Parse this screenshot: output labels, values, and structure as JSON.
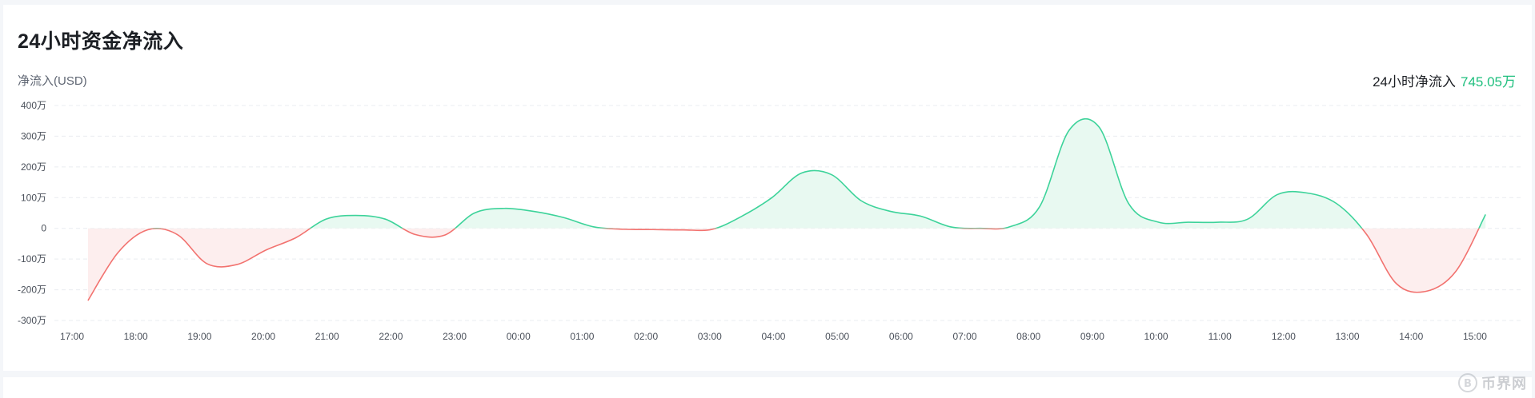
{
  "title": "24小时资金净流入",
  "unit_label": "净流入(USD)",
  "summary": {
    "label": "24小时净流入",
    "value": "745.05万"
  },
  "colors": {
    "positive_line": "#3dd39a",
    "positive_fill": "#e8f9f1",
    "negative_line": "#f2726f",
    "negative_fill": "#fdeeee",
    "summary_value": "#1fbf7e"
  },
  "chart_data": {
    "type": "area",
    "title": "24小时资金净流入",
    "ylabel": "净流入(USD)",
    "xlabel": "",
    "ylim": [
      -300,
      400
    ],
    "yticks": [
      {
        "value": 400,
        "label": "400万"
      },
      {
        "value": 300,
        "label": "300万"
      },
      {
        "value": 200,
        "label": "200万"
      },
      {
        "value": 100,
        "label": "100万"
      },
      {
        "value": 0,
        "label": "0"
      },
      {
        "value": -100,
        "label": "-100万"
      },
      {
        "value": -200,
        "label": "-200万"
      },
      {
        "value": -300,
        "label": "-300万"
      }
    ],
    "xticks": [
      "17:00",
      "18:00",
      "19:00",
      "20:00",
      "21:00",
      "22:00",
      "23:00",
      "00:00",
      "01:00",
      "02:00",
      "03:00",
      "04:00",
      "05:00",
      "06:00",
      "07:00",
      "08:00",
      "09:00",
      "10:00",
      "11:00",
      "12:00",
      "13:00",
      "14:00",
      "15:00"
    ],
    "grid": true,
    "x_start": "17:15",
    "x_end": "15:10",
    "series": [
      {
        "values": [
          -235,
          -80,
          -5,
          -20,
          -115,
          -118,
          -70,
          -30,
          30,
          42,
          30,
          -20,
          -22,
          50,
          65,
          55,
          35,
          5,
          -3,
          -4,
          -5,
          -3,
          40,
          100,
          180,
          175,
          90,
          55,
          40,
          5,
          0,
          5,
          70,
          320,
          330,
          80,
          20,
          20,
          20,
          30,
          110,
          115,
          80,
          -20,
          -180,
          -205,
          -140,
          45
        ]
      }
    ]
  },
  "watermark": {
    "text": "币界网"
  }
}
